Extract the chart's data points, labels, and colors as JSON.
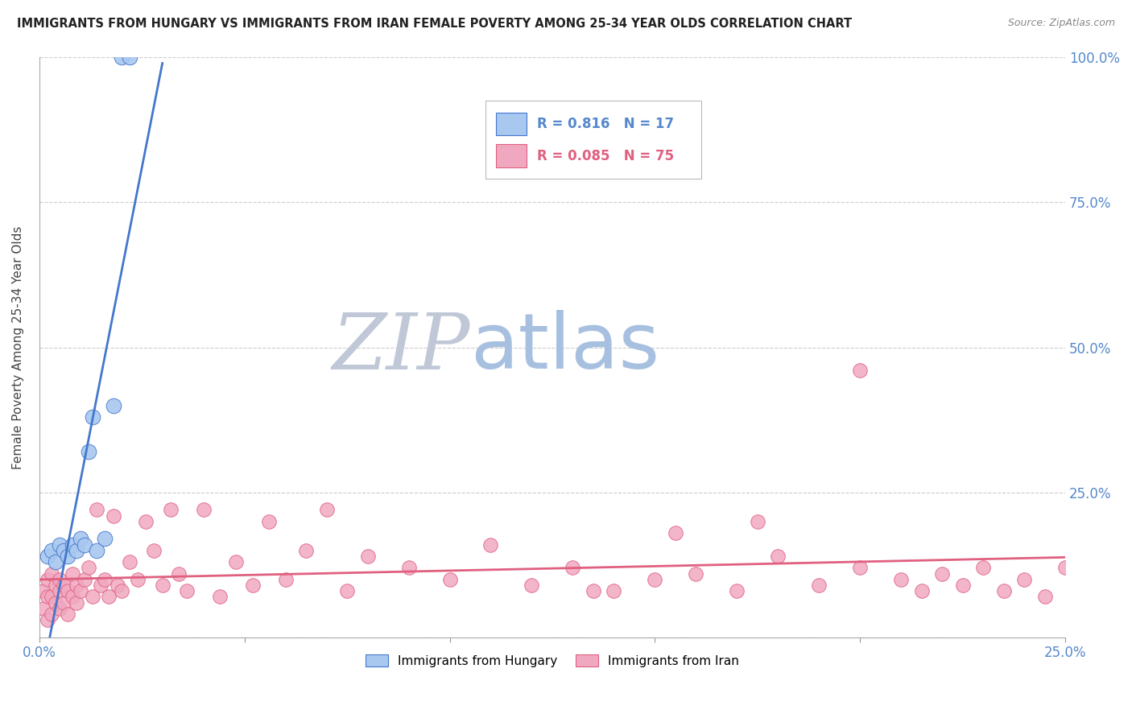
{
  "title": "IMMIGRANTS FROM HUNGARY VS IMMIGRANTS FROM IRAN FEMALE POVERTY AMONG 25-34 YEAR OLDS CORRELATION CHART",
  "source": "Source: ZipAtlas.com",
  "ylabel": "Female Poverty Among 25-34 Year Olds",
  "xlim": [
    0.0,
    0.25
  ],
  "ylim": [
    0.0,
    1.0
  ],
  "hungary_R": 0.816,
  "hungary_N": 17,
  "iran_R": 0.085,
  "iran_N": 75,
  "hungary_color": "#a8c8f0",
  "iran_color": "#f0a8c0",
  "hungary_line_color": "#4477cc",
  "iran_line_color": "#e06080",
  "watermark_zip_color": "#c0c8d8",
  "watermark_atlas_color": "#a8c0e0",
  "hungary_x": [
    0.002,
    0.003,
    0.004,
    0.005,
    0.006,
    0.007,
    0.008,
    0.009,
    0.01,
    0.011,
    0.012,
    0.013,
    0.014,
    0.016,
    0.018,
    0.02,
    0.022
  ],
  "hungary_y": [
    0.14,
    0.15,
    0.13,
    0.16,
    0.15,
    0.14,
    0.16,
    0.15,
    0.17,
    0.16,
    0.32,
    0.38,
    0.15,
    0.17,
    0.4,
    1.0,
    1.0
  ],
  "iran_x": [
    0.001,
    0.001,
    0.002,
    0.002,
    0.002,
    0.003,
    0.003,
    0.003,
    0.004,
    0.004,
    0.005,
    0.005,
    0.005,
    0.006,
    0.006,
    0.007,
    0.007,
    0.008,
    0.008,
    0.009,
    0.009,
    0.01,
    0.011,
    0.012,
    0.013,
    0.014,
    0.015,
    0.016,
    0.017,
    0.018,
    0.019,
    0.02,
    0.022,
    0.024,
    0.026,
    0.028,
    0.03,
    0.032,
    0.034,
    0.036,
    0.04,
    0.044,
    0.048,
    0.052,
    0.056,
    0.06,
    0.065,
    0.07,
    0.075,
    0.08,
    0.09,
    0.1,
    0.11,
    0.12,
    0.13,
    0.14,
    0.15,
    0.16,
    0.17,
    0.18,
    0.19,
    0.2,
    0.21,
    0.215,
    0.22,
    0.225,
    0.23,
    0.235,
    0.24,
    0.245,
    0.25,
    0.2,
    0.175,
    0.155,
    0.135
  ],
  "iran_y": [
    0.08,
    0.05,
    0.07,
    0.03,
    0.1,
    0.04,
    0.07,
    0.11,
    0.06,
    0.09,
    0.08,
    0.05,
    0.1,
    0.09,
    0.06,
    0.08,
    0.04,
    0.11,
    0.07,
    0.06,
    0.09,
    0.08,
    0.1,
    0.12,
    0.07,
    0.22,
    0.09,
    0.1,
    0.07,
    0.21,
    0.09,
    0.08,
    0.13,
    0.1,
    0.2,
    0.15,
    0.09,
    0.22,
    0.11,
    0.08,
    0.22,
    0.07,
    0.13,
    0.09,
    0.2,
    0.1,
    0.15,
    0.22,
    0.08,
    0.14,
    0.12,
    0.1,
    0.16,
    0.09,
    0.12,
    0.08,
    0.1,
    0.11,
    0.08,
    0.14,
    0.09,
    0.12,
    0.1,
    0.08,
    0.11,
    0.09,
    0.12,
    0.08,
    0.1,
    0.07,
    0.12,
    0.46,
    0.2,
    0.18,
    0.08
  ]
}
